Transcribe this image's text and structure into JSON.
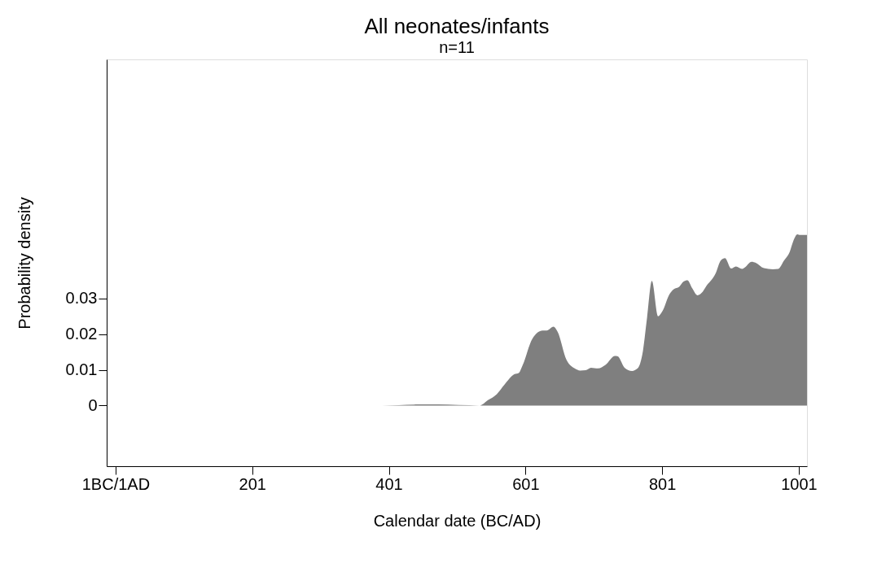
{
  "chart_data": {
    "type": "area",
    "title": "All neonates/infants",
    "subtitle": "n=11",
    "xlabel": "Calendar date (BC/AD)",
    "ylabel": "Probability density",
    "x": [
      345,
      391,
      444,
      473,
      534,
      546,
      559,
      570,
      585,
      591,
      597,
      611,
      626,
      632,
      642,
      648,
      661,
      673,
      681,
      689,
      697,
      707,
      718,
      732,
      736,
      746,
      757,
      765,
      773,
      779,
      786,
      795,
      801,
      812,
      818,
      826,
      832,
      838,
      845,
      853,
      859,
      865,
      879,
      887,
      893,
      902,
      909,
      918,
      922,
      932,
      938,
      950,
      963,
      971,
      979,
      988,
      993,
      999,
      1003,
      1013
    ],
    "series": [
      {
        "color": "#7f7f7f",
        "values": [
          0,
          0,
          0.0003,
          0.0003,
          0,
          0.0015,
          0.0032,
          0.0058,
          0.0088,
          0.0091,
          0.0114,
          0.0187,
          0.021,
          0.021,
          0.0221,
          0.0207,
          0.0128,
          0.0104,
          0.0098,
          0.0099,
          0.0106,
          0.0104,
          0.0114,
          0.0139,
          0.0138,
          0.0106,
          0.0097,
          0.0104,
          0.0154,
          0.0247,
          0.0349,
          0.025,
          0.0263,
          0.0313,
          0.0326,
          0.0333,
          0.0347,
          0.0351,
          0.0329,
          0.0309,
          0.0316,
          0.0333,
          0.0369,
          0.0407,
          0.0413,
          0.0384,
          0.039,
          0.0383,
          0.0387,
          0.0403,
          0.04,
          0.0385,
          0.0382,
          0.0383,
          0.0405,
          0.0432,
          0.0461,
          0.048,
          0.0478,
          0.0478
        ]
      }
    ],
    "xlim": [
      -12,
      1013
    ],
    "ylim": [
      -0.017,
      0.097
    ],
    "xticks": [
      {
        "value": 1,
        "label": "1BC/1AD"
      },
      201,
      401,
      601,
      801,
      1001
    ],
    "yticks": [
      0,
      0.01,
      0.02,
      0.03
    ],
    "grid": false
  }
}
